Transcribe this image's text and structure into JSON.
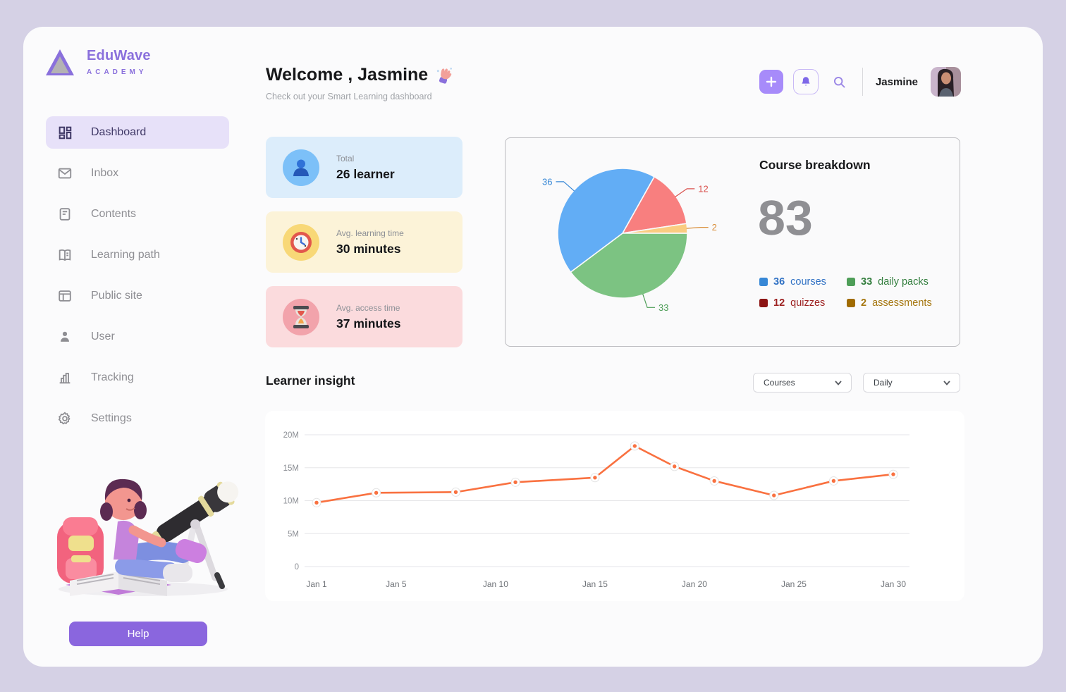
{
  "app": {
    "brand": "EduWave",
    "brand_sub": "ACADEMY"
  },
  "sidebar": {
    "items": [
      {
        "label": "Dashboard",
        "active": true
      },
      {
        "label": "Inbox",
        "active": false
      },
      {
        "label": "Contents",
        "active": false
      },
      {
        "label": "Learning path",
        "active": false
      },
      {
        "label": "Public site",
        "active": false
      },
      {
        "label": "User",
        "active": false
      },
      {
        "label": "Tracking",
        "active": false
      },
      {
        "label": "Settings",
        "active": false
      }
    ],
    "help_label": "Help"
  },
  "header": {
    "title": "Welcome , Jasmine",
    "subtitle": "Check out your Smart Learning dashboard",
    "user_name": "Jasmine"
  },
  "stats": [
    {
      "label": "Total",
      "value": "26 learner",
      "bg": "#DCEDFB",
      "icon_bg": "#7CC0F8",
      "icon": "learners-icon"
    },
    {
      "label": "Avg. learning time",
      "value": "30 minutes",
      "bg": "#FCF3D8",
      "icon_bg": "#F8D877",
      "icon": "clock-icon"
    },
    {
      "label": "Avg. access time",
      "value": "37 minutes",
      "bg": "#FBDBDD",
      "icon_bg": "#F2A3AB",
      "icon": "hourglass-icon"
    }
  ],
  "course_breakdown": {
    "title": "Course breakdown",
    "total": "83",
    "legend": [
      {
        "count": "36",
        "label": "courses",
        "swatch": "#3787D6",
        "text_color": "#3071C4"
      },
      {
        "count": "33",
        "label": "daily packs",
        "swatch": "#4E9E58",
        "text_color": "#337E3E"
      },
      {
        "count": "12",
        "label": "quizzes",
        "swatch": "#8C1414",
        "text_color": "#9C1F1F"
      },
      {
        "count": "2",
        "label": "assessments",
        "swatch": "#A06B00",
        "text_color": "#A5760F"
      }
    ]
  },
  "insight": {
    "title": "Learner insight",
    "filters": [
      {
        "value": "Courses"
      },
      {
        "value": "Daily"
      }
    ]
  },
  "chart_data": [
    {
      "type": "pie",
      "title": "Course breakdown",
      "total": 83,
      "start_angle_deg": 29.3,
      "slices": [
        {
          "label": "quizzes",
          "value": 12,
          "color": "#F87F7F",
          "label_color": "#D9534F"
        },
        {
          "label": "assessments",
          "value": 2,
          "color": "#FACC81",
          "label_color": "#D98E3A"
        },
        {
          "label": "daily packs",
          "value": 33,
          "color": "#7CC382",
          "label_color": "#4E9E58"
        },
        {
          "label": "courses",
          "value": 36,
          "color": "#62ADF5",
          "label_color": "#3787D6"
        }
      ]
    },
    {
      "type": "line",
      "title": "Learner insight",
      "x_unit": "day of January",
      "x": [
        1,
        4,
        8,
        11,
        15,
        17,
        19,
        21,
        24,
        27,
        30
      ],
      "values_millions": [
        9.7,
        11.2,
        11.3,
        12.8,
        13.5,
        18.3,
        15.2,
        13.0,
        10.8,
        13.0,
        14.0
      ],
      "x_ticks": [
        1,
        5,
        10,
        15,
        20,
        25,
        30
      ],
      "x_tick_labels": [
        "Jan 1",
        "Jan 5",
        "Jan 10",
        "Jan 15",
        "Jan 20",
        "Jan 25",
        "Jan 30"
      ],
      "y_ticks": [
        0,
        5,
        10,
        15,
        20
      ],
      "y_tick_labels": [
        "0",
        "5M",
        "10M",
        "15M",
        "20M"
      ],
      "ylim": [
        0,
        20
      ],
      "grid": true,
      "line_color": "#F97140"
    }
  ]
}
